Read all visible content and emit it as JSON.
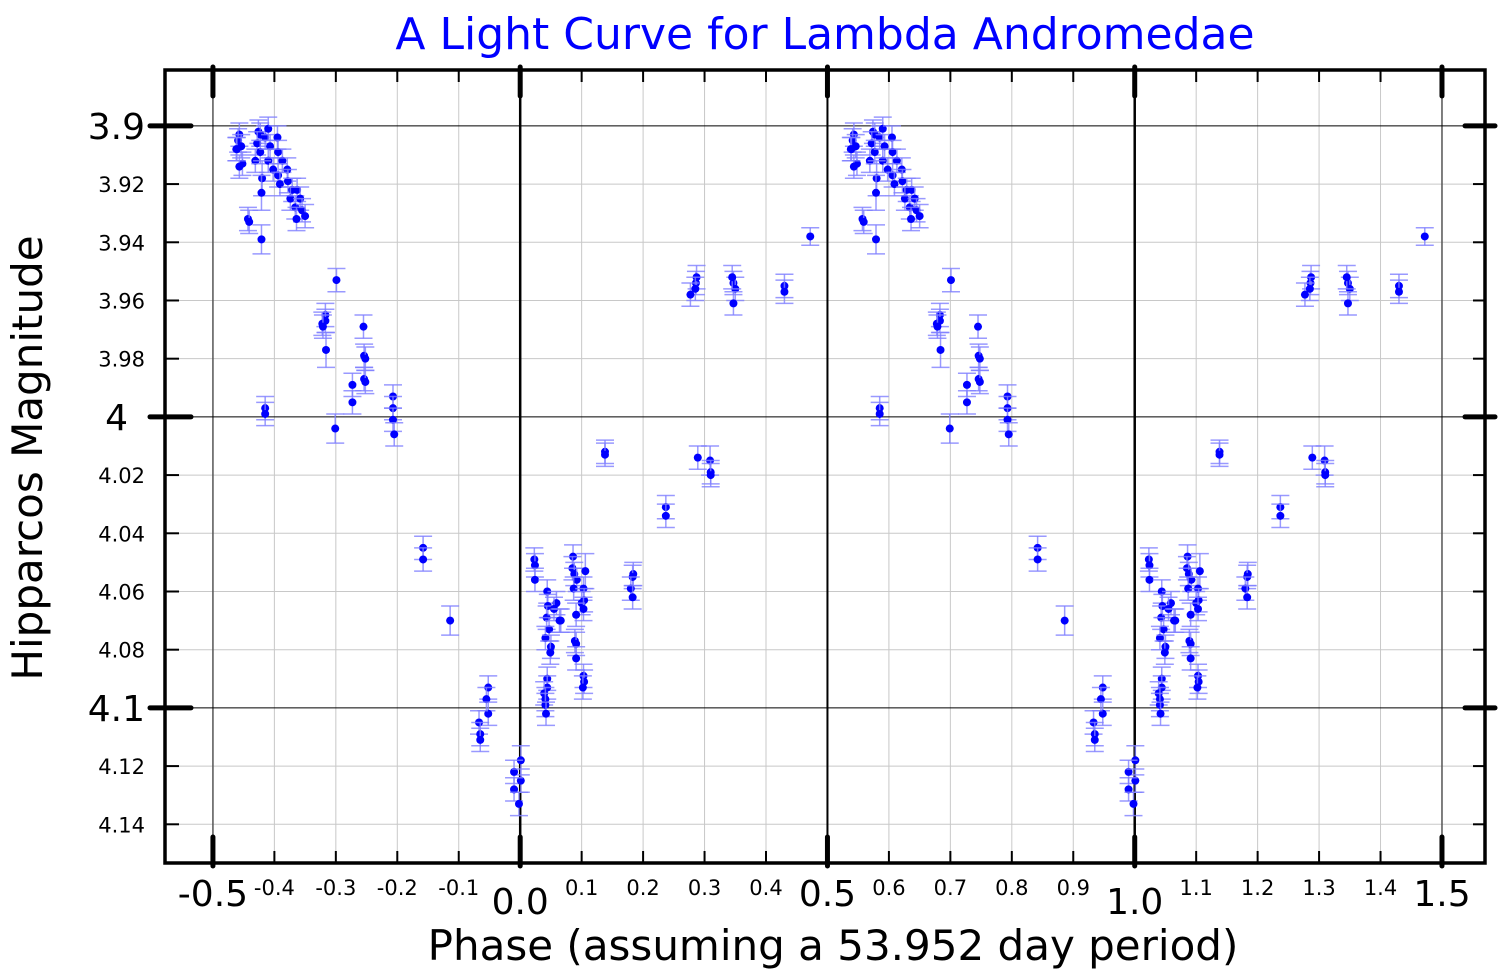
{
  "chart_data": {
    "type": "scatter",
    "title": "A Light Curve for Lambda Andromedae",
    "xlabel": "Phase (assuming a 53.952 day period)",
    "ylabel": "Hipparcos Magnitude",
    "xlim": [
      -0.578,
      1.57
    ],
    "ylim": [
      4.1533,
      3.8808
    ],
    "y_inverted": true,
    "grid": true,
    "repeat_offset": 1,
    "point_color": "#0000ff",
    "errorbar_color": "#8080ff",
    "title_color": "#0000ff",
    "x_major_ticks": [
      {
        "v": -0.5,
        "label": "-0.5"
      },
      {
        "v": 0.0,
        "label": "0.0"
      },
      {
        "v": 0.5,
        "label": "0.5"
      },
      {
        "v": 1.0,
        "label": "1.0"
      },
      {
        "v": 1.5,
        "label": "1.5"
      }
    ],
    "x_minor_ticks": [
      {
        "v": -0.4,
        "label": "-0.4"
      },
      {
        "v": -0.3,
        "label": "-0.3"
      },
      {
        "v": -0.2,
        "label": "-0.2"
      },
      {
        "v": -0.1,
        "label": "-0.1"
      },
      {
        "v": 0.1,
        "label": "0.1"
      },
      {
        "v": 0.2,
        "label": "0.2"
      },
      {
        "v": 0.3,
        "label": "0.3"
      },
      {
        "v": 0.4,
        "label": "0.4"
      },
      {
        "v": 0.6,
        "label": "0.6"
      },
      {
        "v": 0.7,
        "label": "0.7"
      },
      {
        "v": 0.8,
        "label": "0.8"
      },
      {
        "v": 0.9,
        "label": "0.9"
      },
      {
        "v": 1.1,
        "label": "1.1"
      },
      {
        "v": 1.2,
        "label": "1.2"
      },
      {
        "v": 1.3,
        "label": "1.3"
      },
      {
        "v": 1.4,
        "label": "1.4"
      }
    ],
    "y_major_ticks": [
      {
        "v": 3.9,
        "label": "3.9"
      },
      {
        "v": 4.0,
        "label": "4"
      },
      {
        "v": 4.1,
        "label": "4.1"
      }
    ],
    "y_minor_ticks": [
      {
        "v": 3.92,
        "label": "3.92"
      },
      {
        "v": 3.94,
        "label": "3.94"
      },
      {
        "v": 3.96,
        "label": "3.96"
      },
      {
        "v": 3.98,
        "label": "3.98"
      },
      {
        "v": 4.02,
        "label": "4.02"
      },
      {
        "v": 4.04,
        "label": "4.04"
      },
      {
        "v": 4.06,
        "label": "4.06"
      },
      {
        "v": 4.08,
        "label": "4.08"
      },
      {
        "v": 4.12,
        "label": "4.12"
      },
      {
        "v": 4.14,
        "label": "4.14"
      }
    ],
    "points": [
      [
        -0.457,
        3.903,
        0.004
      ],
      [
        -0.459,
        3.905,
        0.004
      ],
      [
        -0.462,
        3.908,
        0.004
      ],
      [
        -0.454,
        3.907,
        0.004
      ],
      [
        -0.452,
        3.913,
        0.004
      ],
      [
        -0.457,
        3.914,
        0.004
      ],
      [
        -0.461,
        3.908,
        0.004
      ],
      [
        -0.426,
        3.902,
        0.004
      ],
      [
        -0.423,
        3.903,
        0.004
      ],
      [
        -0.415,
        3.904,
        0.004
      ],
      [
        -0.428,
        3.906,
        0.004
      ],
      [
        -0.431,
        3.912,
        0.004
      ],
      [
        -0.423,
        3.909,
        0.004
      ],
      [
        -0.41,
        3.901,
        0.004
      ],
      [
        -0.407,
        3.907,
        0.004
      ],
      [
        -0.395,
        3.904,
        0.004
      ],
      [
        -0.41,
        3.912,
        0.004
      ],
      [
        -0.402,
        3.915,
        0.004
      ],
      [
        -0.394,
        3.909,
        0.004
      ],
      [
        -0.387,
        3.912,
        0.004
      ],
      [
        -0.379,
        3.915,
        0.004
      ],
      [
        -0.394,
        3.917,
        0.004
      ],
      [
        -0.391,
        3.92,
        0.004
      ],
      [
        -0.378,
        3.919,
        0.004
      ],
      [
        -0.371,
        3.922,
        0.004
      ],
      [
        -0.363,
        3.922,
        0.004
      ],
      [
        -0.374,
        3.925,
        0.004
      ],
      [
        -0.366,
        3.928,
        0.004
      ],
      [
        -0.358,
        3.925,
        0.004
      ],
      [
        -0.355,
        3.929,
        0.004
      ],
      [
        -0.35,
        3.931,
        0.004
      ],
      [
        -0.364,
        3.932,
        0.004
      ],
      [
        -0.42,
        3.918,
        0.006
      ],
      [
        -0.421,
        3.923,
        0.006
      ],
      [
        -0.443,
        3.932,
        0.004
      ],
      [
        -0.441,
        3.933,
        0.004
      ],
      [
        -0.421,
        3.939,
        0.005
      ],
      [
        -0.415,
        3.997,
        0.004
      ],
      [
        -0.415,
        3.999,
        0.004
      ],
      [
        -0.299,
        3.953,
        0.004
      ],
      [
        -0.317,
        3.965,
        0.004
      ],
      [
        -0.317,
        3.967,
        0.004
      ],
      [
        -0.322,
        3.968,
        0.004
      ],
      [
        -0.321,
        3.969,
        0.004
      ],
      [
        -0.316,
        3.977,
        0.006
      ],
      [
        -0.255,
        3.969,
        0.004
      ],
      [
        -0.254,
        3.979,
        0.004
      ],
      [
        -0.252,
        3.98,
        0.004
      ],
      [
        -0.254,
        3.987,
        0.004
      ],
      [
        -0.252,
        3.988,
        0.004
      ],
      [
        -0.273,
        3.989,
        0.004
      ],
      [
        -0.273,
        3.995,
        0.004
      ],
      [
        -0.301,
        4.004,
        0.005
      ],
      [
        -0.207,
        3.993,
        0.004
      ],
      [
        -0.207,
        3.997,
        0.004
      ],
      [
        -0.207,
        4.001,
        0.004
      ],
      [
        -0.205,
        4.006,
        0.004
      ],
      [
        -0.158,
        4.045,
        0.004
      ],
      [
        -0.158,
        4.049,
        0.004
      ],
      [
        -0.114,
        4.07,
        0.005
      ],
      [
        -0.052,
        4.093,
        0.004
      ],
      [
        -0.055,
        4.097,
        0.004
      ],
      [
        -0.052,
        4.102,
        0.004
      ],
      [
        -0.067,
        4.105,
        0.004
      ],
      [
        -0.065,
        4.109,
        0.004
      ],
      [
        -0.065,
        4.111,
        0.004
      ],
      [
        0.001,
        4.118,
        0.005
      ],
      [
        -0.01,
        4.122,
        0.004
      ],
      [
        0.001,
        4.125,
        0.004
      ],
      [
        -0.01,
        4.128,
        0.004
      ],
      [
        -0.002,
        4.133,
        0.004
      ],
      [
        0.023,
        4.049,
        0.004
      ],
      [
        0.024,
        4.051,
        0.004
      ],
      [
        0.024,
        4.056,
        0.004
      ],
      [
        0.044,
        4.06,
        0.004
      ],
      [
        0.045,
        4.065,
        0.004
      ],
      [
        0.043,
        4.069,
        0.004
      ],
      [
        0.047,
        4.073,
        0.004
      ],
      [
        0.041,
        4.076,
        0.004
      ],
      [
        0.05,
        4.079,
        0.004
      ],
      [
        0.049,
        4.081,
        0.004
      ],
      [
        0.044,
        4.09,
        0.004
      ],
      [
        0.044,
        4.093,
        0.004
      ],
      [
        0.039,
        4.095,
        0.004
      ],
      [
        0.041,
        4.097,
        0.004
      ],
      [
        0.041,
        4.099,
        0.004
      ],
      [
        0.042,
        4.102,
        0.004
      ],
      [
        0.059,
        4.064,
        0.004
      ],
      [
        0.055,
        4.066,
        0.004
      ],
      [
        0.064,
        4.07,
        0.004
      ],
      [
        0.066,
        4.07,
        0.004
      ],
      [
        0.086,
        4.048,
        0.004
      ],
      [
        0.085,
        4.052,
        0.004
      ],
      [
        0.088,
        4.054,
        0.004
      ],
      [
        0.092,
        4.056,
        0.004
      ],
      [
        0.087,
        4.059,
        0.004
      ],
      [
        0.106,
        4.053,
        0.006
      ],
      [
        0.103,
        4.059,
        0.004
      ],
      [
        0.1,
        4.064,
        0.004
      ],
      [
        0.104,
        4.063,
        0.004
      ],
      [
        0.103,
        4.066,
        0.004
      ],
      [
        0.091,
        4.068,
        0.004
      ],
      [
        0.089,
        4.077,
        0.004
      ],
      [
        0.091,
        4.078,
        0.004
      ],
      [
        0.091,
        4.083,
        0.004
      ],
      [
        0.103,
        4.089,
        0.004
      ],
      [
        0.104,
        4.091,
        0.004
      ],
      [
        0.102,
        4.093,
        0.004
      ],
      [
        0.138,
        4.012,
        0.004
      ],
      [
        0.138,
        4.013,
        0.004
      ],
      [
        0.184,
        4.054,
        0.004
      ],
      [
        0.183,
        4.055,
        0.004
      ],
      [
        0.18,
        4.059,
        0.004
      ],
      [
        0.183,
        4.062,
        0.004
      ],
      [
        0.237,
        4.031,
        0.004
      ],
      [
        0.237,
        4.034,
        0.004
      ],
      [
        0.289,
        4.014,
        0.004
      ],
      [
        0.309,
        4.015,
        0.005
      ],
      [
        0.31,
        4.019,
        0.004
      ],
      [
        0.31,
        4.02,
        0.004
      ],
      [
        0.286,
        3.954,
        0.004
      ],
      [
        0.287,
        3.952,
        0.004
      ],
      [
        0.285,
        3.956,
        0.004
      ],
      [
        0.277,
        3.958,
        0.004
      ],
      [
        0.347,
        3.954,
        0.004
      ],
      [
        0.35,
        3.956,
        0.004
      ],
      [
        0.347,
        3.961,
        0.004
      ],
      [
        0.345,
        3.952,
        0.004
      ],
      [
        0.43,
        3.955,
        0.004
      ],
      [
        0.43,
        3.957,
        0.004
      ],
      [
        0.472,
        3.938,
        0.003
      ]
    ]
  }
}
